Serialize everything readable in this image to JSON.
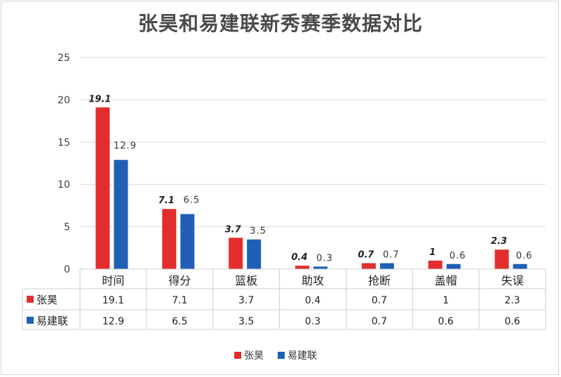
{
  "chart_data": {
    "type": "bar",
    "title": "张昊和易建联新秀赛季数据对比",
    "categories": [
      "时间",
      "得分",
      "篮板",
      "助攻",
      "抢断",
      "盖帽",
      "失误"
    ],
    "series": [
      {
        "name": "张昊",
        "color": "#e32d2d",
        "values": [
          19.1,
          7.1,
          3.7,
          0.4,
          0.7,
          1,
          2.3
        ]
      },
      {
        "name": "易建联",
        "color": "#1f5fb8",
        "values": [
          12.9,
          6.5,
          3.5,
          0.3,
          0.7,
          0.6,
          0.6
        ]
      }
    ],
    "yticks": [
      0,
      5,
      10,
      15,
      20,
      25
    ],
    "ylim": [
      0,
      25
    ],
    "grid": true,
    "legend_position": "bottom-center",
    "data_table": true
  }
}
